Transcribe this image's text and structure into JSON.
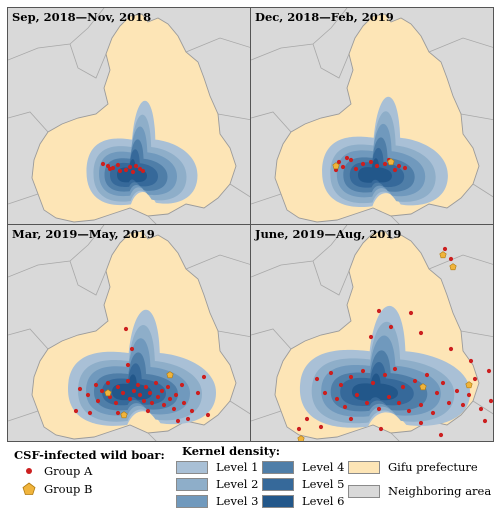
{
  "panels": [
    {
      "title": "Sep, 2018—Nov, 2018",
      "points": [
        [
          -35,
          -8
        ],
        [
          -30,
          -6
        ],
        [
          -25,
          -4
        ],
        [
          -20,
          -7
        ],
        [
          -12,
          -2
        ],
        [
          -5,
          0
        ],
        [
          2,
          -3
        ],
        [
          -28,
          -3
        ],
        [
          -18,
          -1
        ],
        [
          -8,
          -5
        ],
        [
          5,
          -1
        ],
        [
          -2,
          -6
        ]
      ],
      "groupB": []
    },
    {
      "title": "Dec, 2018—Feb, 2019",
      "points": [
        [
          -42,
          -10
        ],
        [
          -38,
          -5
        ],
        [
          -30,
          -12
        ],
        [
          -25,
          -3
        ],
        [
          -18,
          -8
        ],
        [
          -10,
          -10
        ],
        [
          -4,
          -6
        ],
        [
          4,
          -8
        ],
        [
          8,
          -12
        ],
        [
          14,
          -2
        ],
        [
          18,
          -6
        ],
        [
          24,
          -4
        ],
        [
          -34,
          -14
        ],
        [
          -45,
          -2
        ]
      ],
      "groupB": [
        [
          -45,
          -6
        ],
        [
          10,
          -10
        ]
      ]
    },
    {
      "title": "Mar, 2019—May, 2019",
      "points": [
        [
          -58,
          0
        ],
        [
          -50,
          6
        ],
        [
          -42,
          -4
        ],
        [
          -40,
          12
        ],
        [
          -36,
          2
        ],
        [
          -30,
          -6
        ],
        [
          -28,
          8
        ],
        [
          -22,
          14
        ],
        [
          -20,
          -2
        ],
        [
          -15,
          4
        ],
        [
          -10,
          -8
        ],
        [
          -8,
          10
        ],
        [
          -4,
          2
        ],
        [
          0,
          -4
        ],
        [
          2,
          6
        ],
        [
          6,
          12
        ],
        [
          8,
          -2
        ],
        [
          12,
          4
        ],
        [
          14,
          14
        ],
        [
          18,
          -6
        ],
        [
          20,
          8
        ],
        [
          24,
          2
        ],
        [
          26,
          16
        ],
        [
          30,
          -2
        ],
        [
          32,
          10
        ],
        [
          36,
          20
        ],
        [
          38,
          6
        ],
        [
          44,
          -4
        ],
        [
          46,
          14
        ],
        [
          50,
          30
        ],
        [
          54,
          22
        ],
        [
          60,
          4
        ],
        [
          66,
          -12
        ],
        [
          70,
          26
        ],
        [
          -6,
          -40
        ],
        [
          -10,
          -24
        ],
        [
          -12,
          -60
        ],
        [
          -62,
          22
        ],
        [
          -48,
          24
        ],
        [
          40,
          32
        ],
        [
          -20,
          24
        ],
        [
          10,
          22
        ]
      ],
      "groupB": [
        [
          -30,
          4
        ],
        [
          32,
          -14
        ],
        [
          -14,
          26
        ]
      ]
    },
    {
      "title": "June, 2019—Aug, 2019",
      "points": [
        [
          -64,
          -10
        ],
        [
          -56,
          4
        ],
        [
          -50,
          -16
        ],
        [
          -44,
          10
        ],
        [
          -40,
          -4
        ],
        [
          -36,
          18
        ],
        [
          -30,
          -12
        ],
        [
          -24,
          6
        ],
        [
          -18,
          -18
        ],
        [
          -14,
          14
        ],
        [
          -8,
          -6
        ],
        [
          -2,
          20
        ],
        [
          4,
          -14
        ],
        [
          8,
          8
        ],
        [
          14,
          -20
        ],
        [
          18,
          14
        ],
        [
          22,
          -2
        ],
        [
          28,
          22
        ],
        [
          34,
          -8
        ],
        [
          40,
          16
        ],
        [
          46,
          -14
        ],
        [
          52,
          24
        ],
        [
          56,
          4
        ],
        [
          62,
          -6
        ],
        [
          68,
          14
        ],
        [
          76,
          2
        ],
        [
          82,
          16
        ],
        [
          88,
          6
        ],
        [
          94,
          -10
        ],
        [
          100,
          20
        ],
        [
          104,
          32
        ],
        [
          110,
          12
        ],
        [
          116,
          -4
        ],
        [
          90,
          -28
        ],
        [
          70,
          -40
        ],
        [
          40,
          -56
        ],
        [
          30,
          -76
        ],
        [
          10,
          -62
        ],
        [
          -2,
          -78
        ],
        [
          -10,
          -52
        ],
        [
          -74,
          30
        ],
        [
          -82,
          40
        ],
        [
          -90,
          58
        ],
        [
          -60,
          38
        ],
        [
          -30,
          30
        ],
        [
          0,
          40
        ],
        [
          40,
          34
        ],
        [
          60,
          46
        ],
        [
          108,
          -18
        ],
        [
          70,
          -130
        ],
        [
          64,
          -140
        ]
      ],
      "groupB": [
        [
          -80,
          50
        ],
        [
          62,
          -134
        ],
        [
          72,
          -122
        ],
        [
          42,
          -2
        ],
        [
          88,
          -4
        ]
      ]
    }
  ],
  "legend": {
    "csf_title": "CSF-infected wild boar:",
    "group_a": "Group A",
    "group_b": "Group B",
    "kernel_title": "Kernel density:",
    "levels": [
      "Level 1",
      "Level 2",
      "Level 3",
      "Level 4",
      "Level 5",
      "Level 6"
    ],
    "gifu": "Gifu prefecture",
    "neighbor": "Neighboring area"
  },
  "colors": {
    "neighbor": "#d9d9d9",
    "gifu": "#fde5b6",
    "levels": [
      "#a9c0d6",
      "#8eaec9",
      "#7099bd",
      "#4f7ea8",
      "#36699a",
      "#22578a"
    ],
    "groupA": "#cc1f1f",
    "groupB": "#f0b43c"
  }
}
